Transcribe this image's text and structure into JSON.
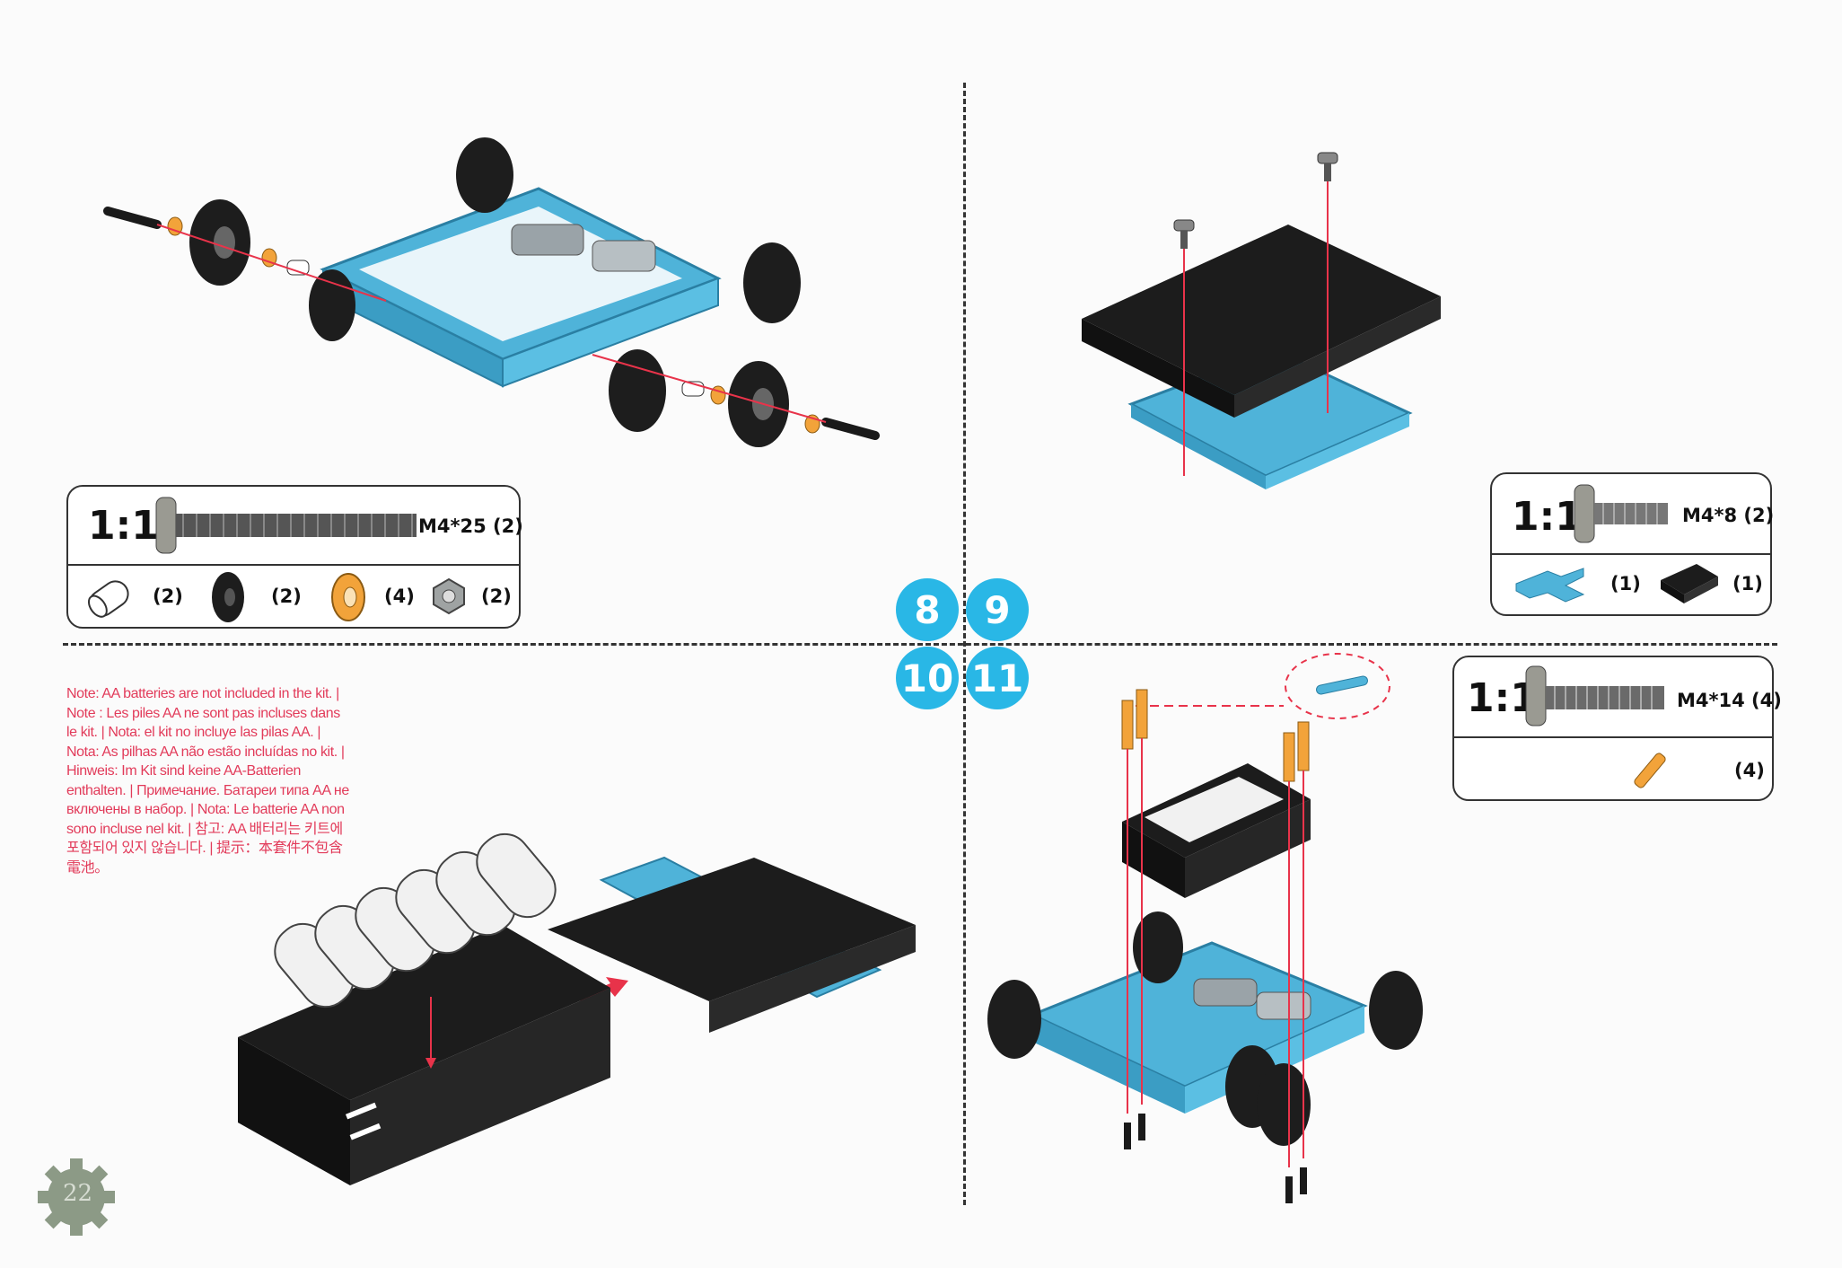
{
  "page": {
    "number": "22"
  },
  "steps": {
    "s8": "8",
    "s9": "9",
    "s10": "10",
    "s11": "11"
  },
  "note": "Note: AA batteries are not included in the kit. | Note : Les piles AA ne sont pas incluses dans le kit. | Nota: el kit no incluye las pilas AA. | Nota: As pilhas AA não estão incluídas no kit. | Hinweis: Im Kit sind keine AA-Batterien enthalten. | Примечание. Батареи типа AA не включены в набор. | Nota: Le batterie AA non sono incluse nel kit. | 참고: AA 배터리는 키트에 포함되어 있지 않습니다. | 提示：本套件不包含電池。",
  "parts_step8": {
    "scale": "1:1",
    "screw_label": "M4*25 (2)",
    "spacer_count": "(2)",
    "wheel_count": "(2)",
    "bushing_count": "(4)",
    "nut_count": "(2)"
  },
  "parts_step9": {
    "scale": "1:1",
    "screw_label": "M4*8 (2)",
    "plate_count": "(1)",
    "block_count": "(1)"
  },
  "parts_step11": {
    "scale": "1:1",
    "screw_label": "M4*14 (4)",
    "standoff_count": "(4)"
  },
  "colors": {
    "accent": "#29b7e6",
    "part_blue": "#4fb3d9",
    "note_red": "#e23b5a",
    "guide_red": "#e8334a",
    "black": "#1c1c1c"
  }
}
